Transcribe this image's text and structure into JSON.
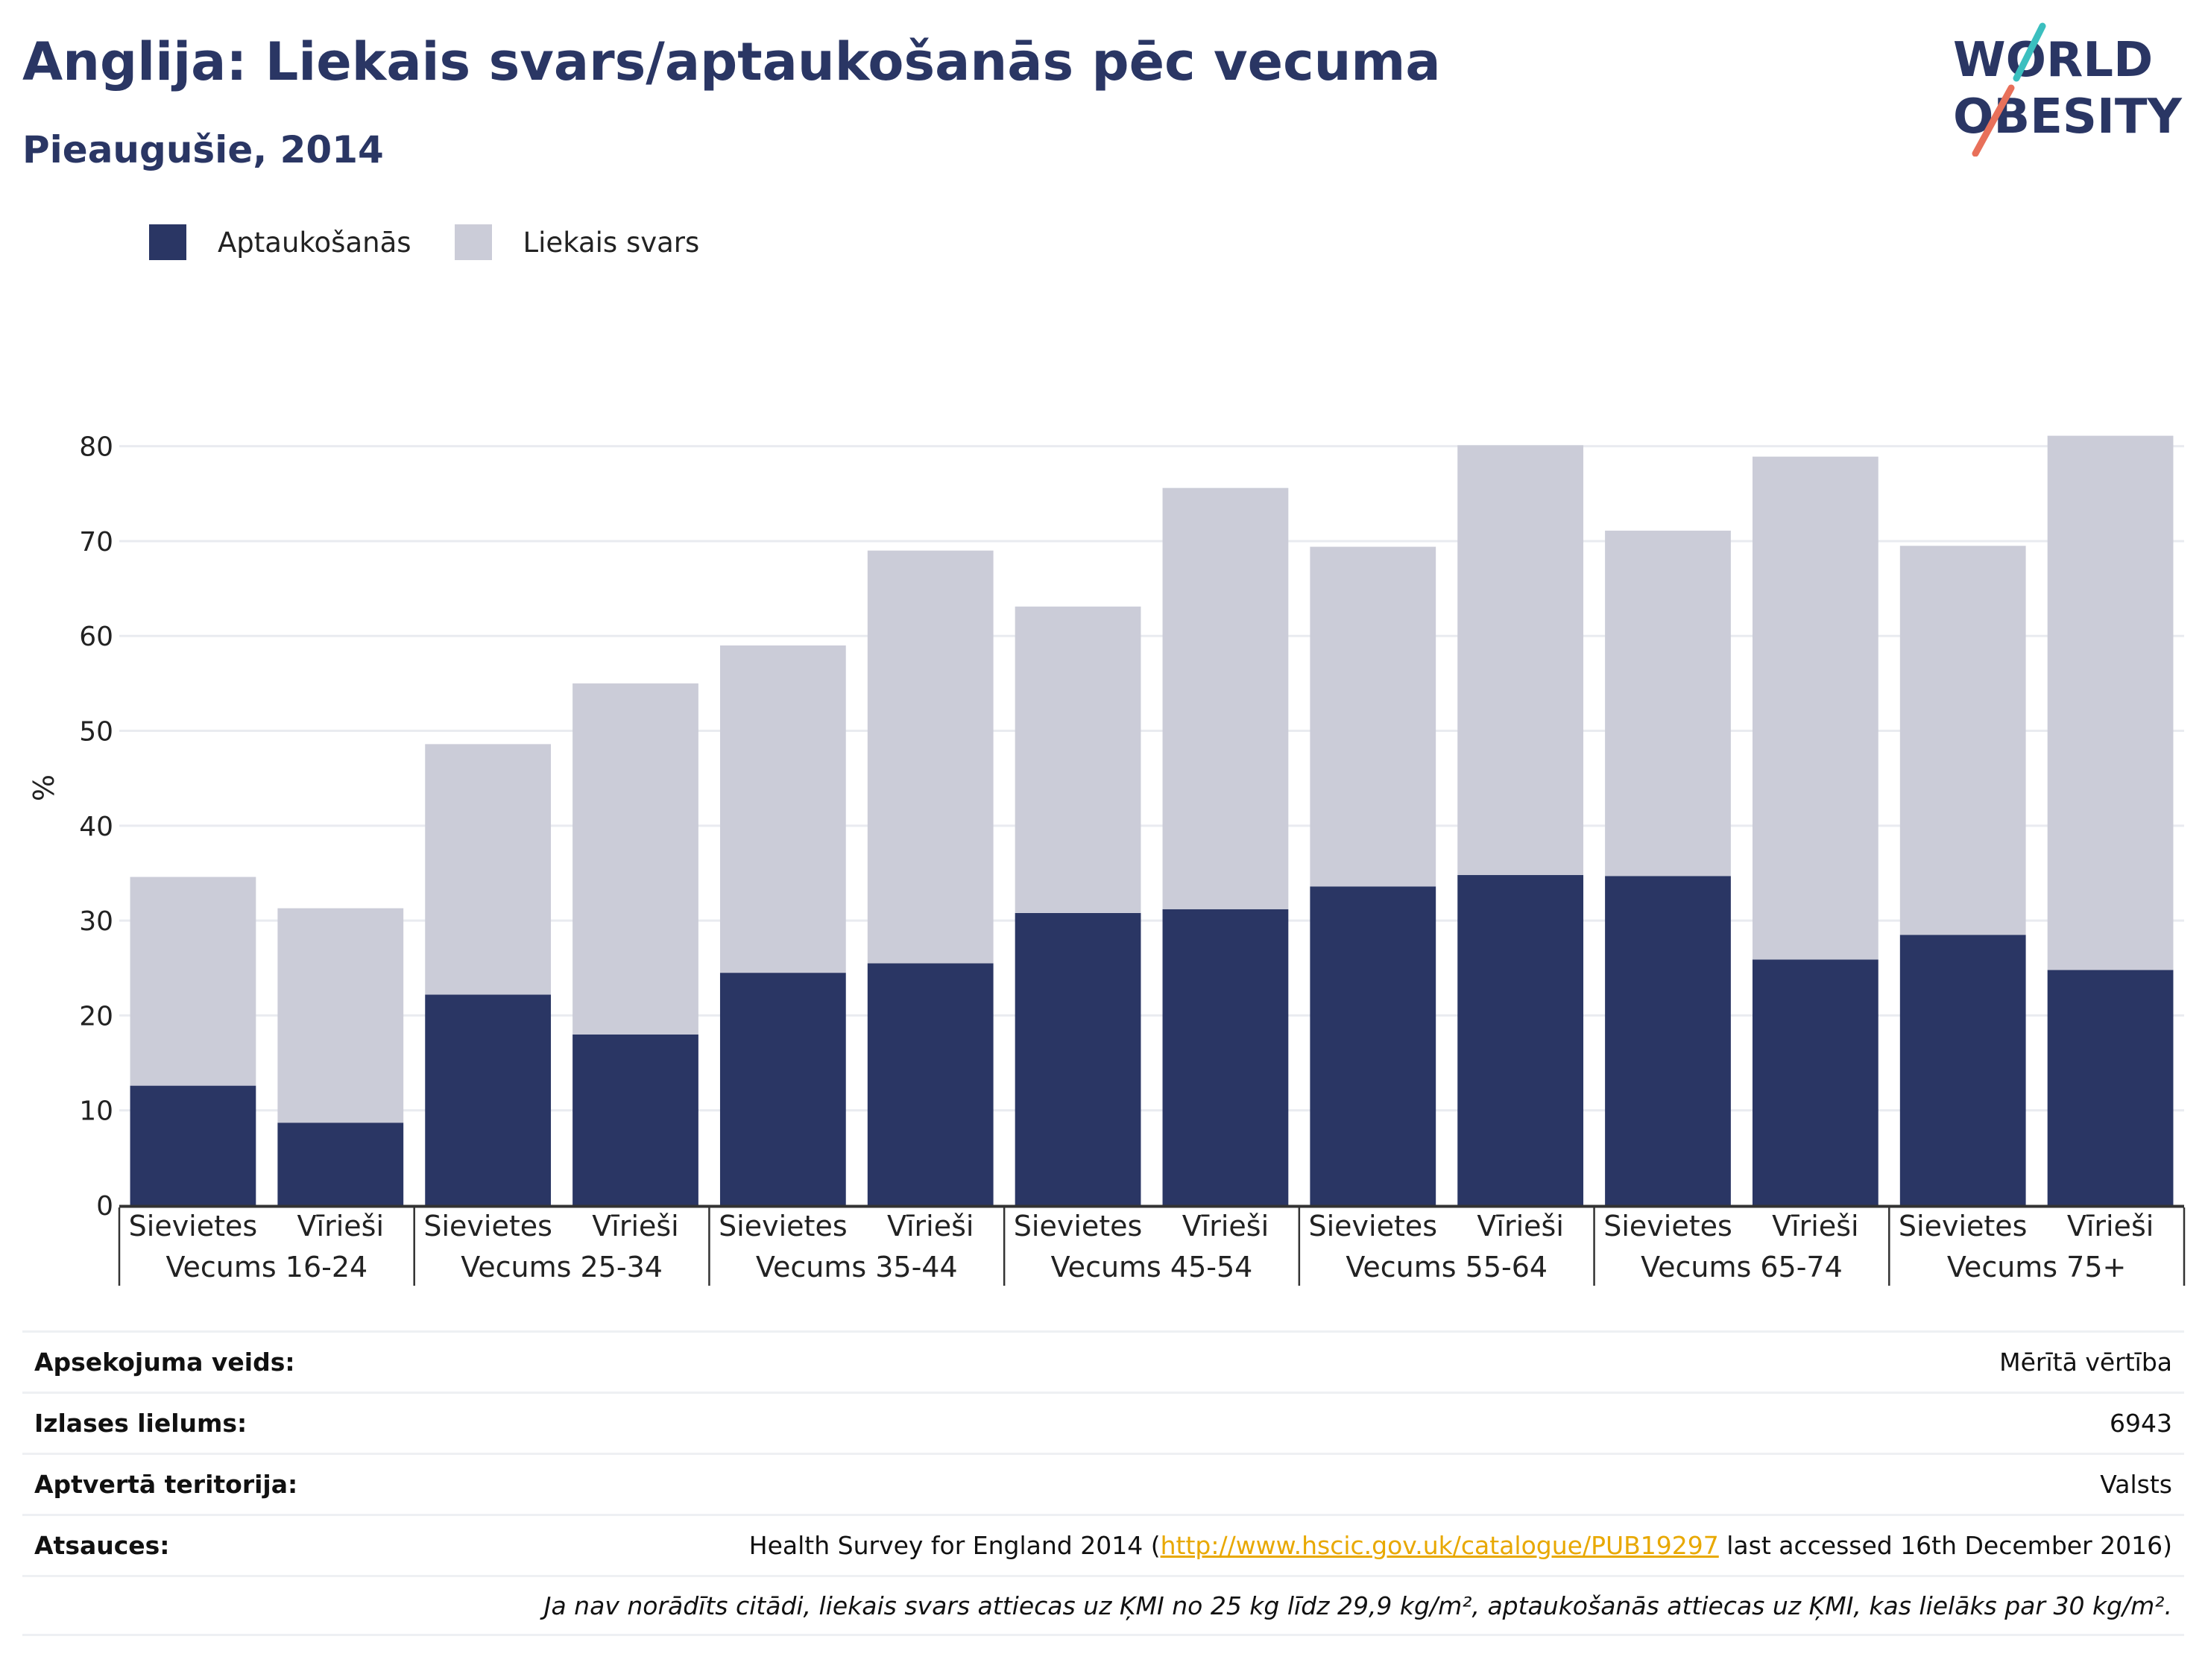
{
  "header": {
    "title": "Anglija: Liekais svars/aptaukošanās pēc vecuma",
    "subtitle": "Pieaugušie, 2014",
    "logo_line1": "WORLD",
    "logo_line2": "OBESITY"
  },
  "colors": {
    "obesity": "#2a3664",
    "overweight": "#cbccd8",
    "grid": "#e9ebf0",
    "axis": "#333333",
    "logo_teal": "#3bbfbf",
    "logo_coral": "#e8705a",
    "link": "#e8a800"
  },
  "chart_data": {
    "type": "bar",
    "stacked": true,
    "legend_position": "top-left",
    "grid": true,
    "ylabel": "%",
    "ylim": [
      0,
      85
    ],
    "yticks": [
      0,
      10,
      20,
      30,
      40,
      50,
      60,
      70,
      80
    ],
    "groups": [
      "Vecums 16-24",
      "Vecums 25-34",
      "Vecums 35-44",
      "Vecums 45-54",
      "Vecums 55-64",
      "Vecums 65-74",
      "Vecums 75+"
    ],
    "subcategories": [
      "Sievietes",
      "Vīrieši"
    ],
    "series": [
      {
        "name": "Aptaukošanās",
        "values": [
          [
            12.6,
            8.7
          ],
          [
            22.2,
            18.0
          ],
          [
            24.5,
            25.5
          ],
          [
            30.8,
            31.2
          ],
          [
            33.6,
            34.8
          ],
          [
            34.7,
            25.9
          ],
          [
            28.5,
            24.8
          ]
        ]
      },
      {
        "name": "Liekais svars",
        "values": [
          [
            22.0,
            22.6
          ],
          [
            26.4,
            37.0
          ],
          [
            34.5,
            43.5
          ],
          [
            32.3,
            44.4
          ],
          [
            35.8,
            45.3
          ],
          [
            36.4,
            53.0
          ],
          [
            41.0,
            56.3
          ]
        ]
      }
    ]
  },
  "meta": {
    "survey_type_label": "Apsekojuma veids:",
    "survey_type_value": "Mērītā vērtība",
    "sample_size_label": "Izlases lielums:",
    "sample_size_value": "6943",
    "coverage_label": "Aptvertā teritorija:",
    "coverage_value": "Valsts",
    "references_label": "Atsauces:",
    "references_prefix": "Health Survey for England 2014 (",
    "references_link": "http://www.hscic.gov.uk/catalogue/PUB19297",
    "references_suffix": " last accessed 16th December 2016)",
    "note": "Ja nav norādīts citādi, liekais svars attiecas uz ĶMI no 25 kg līdz 29,9 kg/m², aptaukošanās attiecas uz ĶMI, kas lielāks par 30 kg/m²."
  }
}
